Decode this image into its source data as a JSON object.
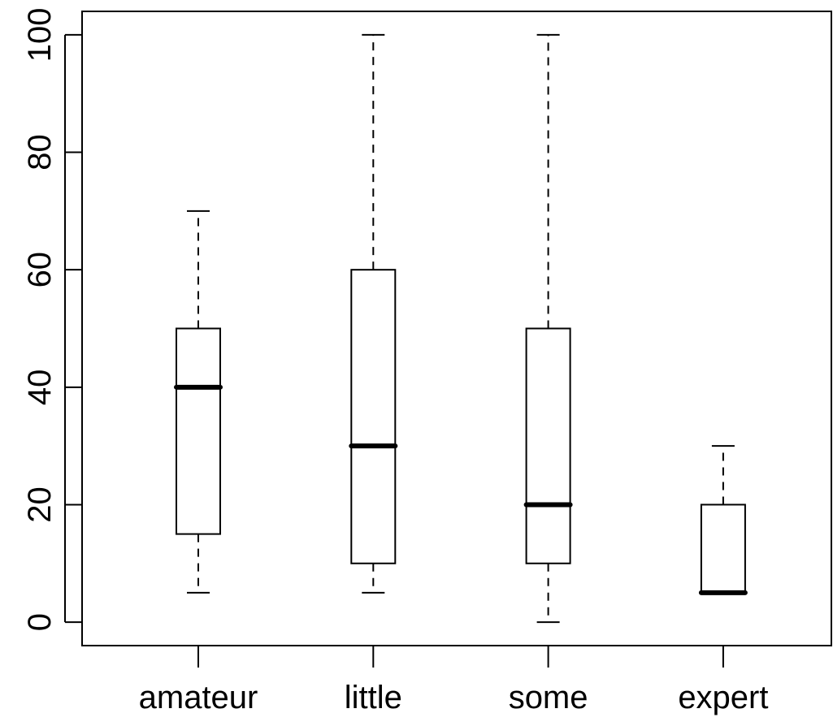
{
  "chart_data": {
    "type": "boxplot",
    "title": "",
    "xlabel": "",
    "ylabel": "",
    "categories": [
      "amateur",
      "little",
      "some",
      "expert"
    ],
    "boxes": [
      {
        "category": "amateur",
        "whisker_low": 5,
        "q1": 15,
        "median": 40,
        "q3": 50,
        "whisker_high": 70
      },
      {
        "category": "little",
        "whisker_low": 5,
        "q1": 10,
        "median": 30,
        "q3": 60,
        "whisker_high": 100
      },
      {
        "category": "some",
        "whisker_low": 0,
        "q1": 10,
        "median": 20,
        "q3": 50,
        "whisker_high": 100
      },
      {
        "category": "expert",
        "whisker_low": 5,
        "q1": 5,
        "median": 5,
        "q3": 20,
        "whisker_high": 30
      }
    ],
    "y_ticks": [
      0,
      20,
      40,
      60,
      80,
      100
    ],
    "ylim": [
      -4,
      104
    ],
    "grid": false,
    "legend": "none",
    "colors": {
      "stroke": "#000000",
      "box_fill": "#ffffff"
    }
  }
}
